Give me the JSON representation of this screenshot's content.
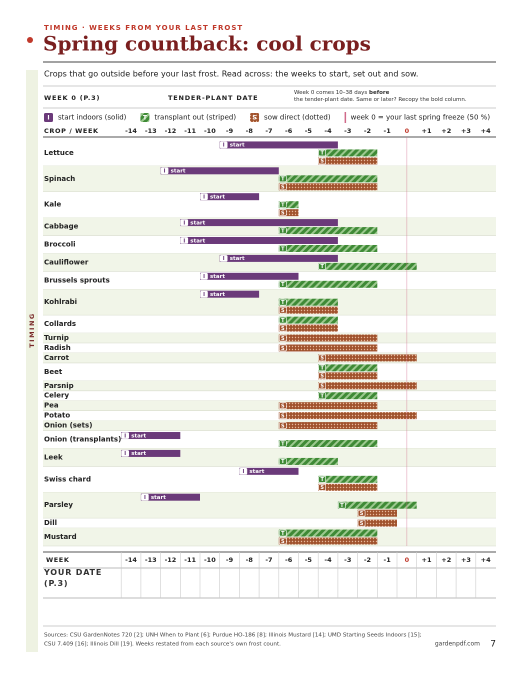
{
  "kicker": "TIMING · WEEKS FROM YOUR LAST FROST",
  "side_label": "TIMING",
  "title": "Spring countback: cool crops",
  "subtitle": "Crops that go outside before your last frost. Read across: the weeks to start, set out and sow.",
  "week0_label": "WEEK 0 (P.3)",
  "tender_label": "TENDER-PLANT DATE",
  "note": [
    "Week 0 comes 10–38 days ",
    "before",
    " the tender-plant date. Same or later? Recopy the bold column."
  ],
  "chart_data": {
    "type": "gantt",
    "axis_label": "CROP / WEEK",
    "start_label": "start",
    "week0_line": "week 0 = your last spring freeze (50 %)",
    "xlim": [
      -14.5,
      4.5
    ],
    "xticks": [
      -14,
      -13,
      -12,
      -11,
      -10,
      -9,
      -8,
      -7,
      -6,
      -5,
      -4,
      -3,
      -2,
      -1,
      0,
      {
        "value": 1,
        "label": "+1"
      },
      {
        "value": 2,
        "label": "+2"
      },
      {
        "value": 3,
        "label": "+3"
      },
      {
        "value": 4,
        "label": "+4"
      }
    ],
    "categories": [
      "Lettuce",
      "Spinach",
      "Kale",
      "Cabbage",
      "Broccoli",
      "Cauliflower",
      "Brussels sprouts",
      "Kohlrabi",
      "Collards",
      "Turnip",
      "Radish",
      "Carrot",
      "Beet",
      "Parsnip",
      "Celery",
      "Pea",
      "Potato",
      "Onion (sets)",
      "Onion (transplants)",
      "Leek",
      "Swiss chard",
      "Parsley",
      "Dill",
      "Mustard"
    ],
    "series": [
      {
        "name": "start indoors (solid)",
        "letter": "I",
        "color": "#6b3a7a",
        "style": "solid",
        "values": [
          [
            -9,
            -4
          ],
          [
            -12,
            -7
          ],
          [
            -10,
            -8
          ],
          [
            -11,
            -4
          ],
          [
            -11,
            -4
          ],
          [
            -9,
            -4
          ],
          [
            -10,
            -6
          ],
          [
            -10,
            -8
          ],
          null,
          null,
          null,
          null,
          null,
          null,
          null,
          null,
          null,
          null,
          [
            -14,
            -12
          ],
          [
            -14,
            -12
          ],
          [
            -8,
            -6
          ],
          [
            -13,
            -11
          ],
          null,
          null
        ]
      },
      {
        "name": "transplant out (striped)",
        "letter": "T",
        "color": "#3f8a36",
        "style": "striped",
        "values": [
          [
            -4,
            -2
          ],
          [
            -6,
            -2
          ],
          [
            -6,
            -6
          ],
          [
            -6,
            -2
          ],
          [
            -6,
            -2
          ],
          [
            -4,
            0
          ],
          [
            -6,
            -2
          ],
          [
            -6,
            -4
          ],
          [
            -6,
            -4
          ],
          null,
          null,
          null,
          [
            -4,
            -2
          ],
          null,
          [
            -4,
            -2
          ],
          null,
          null,
          null,
          [
            -6,
            -2
          ],
          [
            -6,
            -4
          ],
          [
            -4,
            -2
          ],
          [
            -3,
            0
          ],
          null,
          [
            -6,
            -2
          ]
        ]
      },
      {
        "name": "sow direct (dotted)",
        "letter": "S",
        "color": "#a0522d",
        "style": "dotted",
        "values": [
          [
            -4,
            -2
          ],
          [
            -6,
            -2
          ],
          [
            -6,
            -6
          ],
          null,
          null,
          null,
          null,
          [
            -6,
            -4
          ],
          [
            -6,
            -4
          ],
          [
            -6,
            -2
          ],
          [
            -6,
            -2
          ],
          [
            -4,
            0
          ],
          [
            -4,
            -2
          ],
          [
            -4,
            0
          ],
          null,
          [
            -6,
            -2
          ],
          [
            -6,
            0
          ],
          [
            -6,
            -2
          ],
          null,
          null,
          [
            -4,
            -2
          ],
          [
            -2,
            -1
          ],
          [
            -2,
            -1
          ],
          [
            -6,
            -2
          ]
        ]
      }
    ],
    "footer_week_label": "WEEK",
    "footer_date_label": "YOUR DATE (P.3)"
  },
  "footer": {
    "sources": [
      "Sources: CSU GardenNotes 720 [2]; UNH When to Plant [6]; Purdue HO-186 [8]; Illinois Mustard [14]; UMD Starting Seeds Indoors [15];",
      "CSU 7.409 [16]; Illinois Dill [19]. Weeks restated from each source's own frost count."
    ],
    "site": "gardenpdf.com",
    "page": "7"
  }
}
